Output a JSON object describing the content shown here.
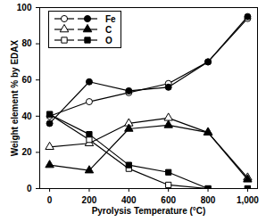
{
  "chart_data": {
    "type": "line",
    "x_label": "Pyrolysis Temperature (°C)",
    "y_label": "Weight element % by EDAX",
    "x": [
      0,
      200,
      400,
      600,
      800,
      1000
    ],
    "xlim": [
      -50,
      1050
    ],
    "xticks": [
      0,
      200,
      400,
      600,
      800,
      1000
    ],
    "ylim": [
      0,
      100
    ],
    "yticks": [
      0,
      20,
      40,
      60,
      80,
      100
    ],
    "legend": "upper left",
    "series": [
      {
        "name": "Fe",
        "color": "#000000",
        "marker": "circle-open",
        "values": [
          40,
          48,
          53,
          58,
          70,
          94
        ]
      },
      {
        "name": "Fe",
        "color": "#000000",
        "marker": "circle",
        "values": [
          36,
          59,
          54,
          56,
          70,
          95
        ]
      },
      {
        "name": "C",
        "color": "#000000",
        "marker": "triangle-open",
        "values": [
          23,
          25,
          36,
          39,
          31,
          6
        ]
      },
      {
        "name": "C",
        "color": "#000000",
        "marker": "triangle",
        "values": [
          13,
          10,
          33,
          35,
          31,
          5
        ]
      },
      {
        "name": "O",
        "color": "#000000",
        "marker": "square-open",
        "values": [
          41,
          27,
          11,
          2,
          0,
          0
        ]
      },
      {
        "name": "O",
        "color": "#000000",
        "marker": "square",
        "values": [
          41,
          30,
          13,
          9,
          0,
          0
        ]
      }
    ]
  }
}
